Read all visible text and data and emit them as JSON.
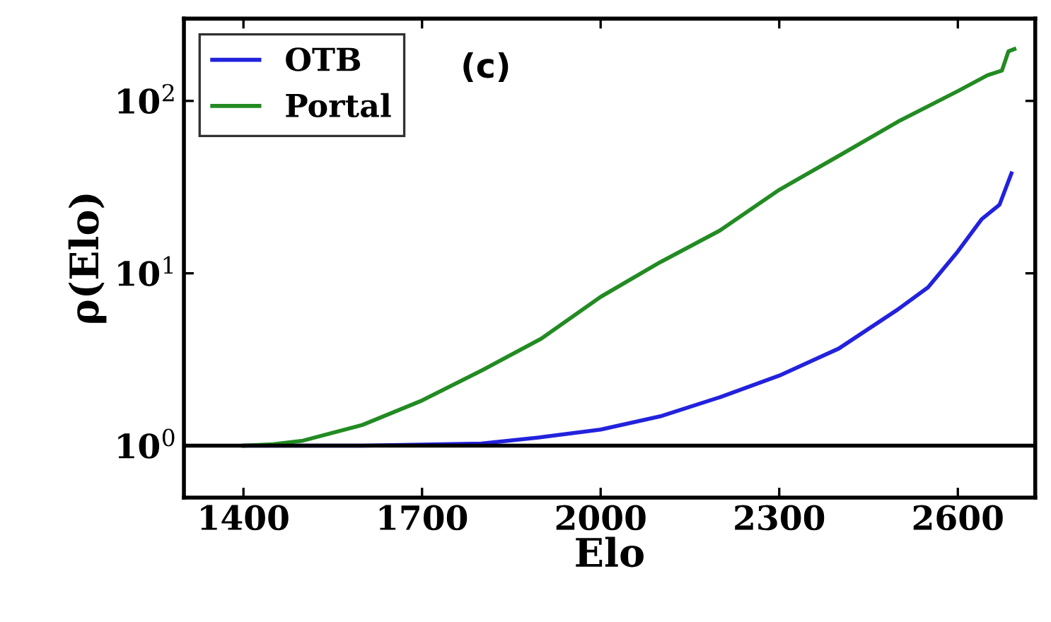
{
  "chart_data": {
    "type": "line",
    "xlabel": "Elo",
    "ylabel": "ρ(Elo)",
    "log": "y",
    "xlim": [
      1300,
      2730
    ],
    "xticks": [
      1400,
      1700,
      2000,
      2300,
      2600
    ],
    "ylim": [
      0.5,
      300
    ],
    "yticks": [
      {
        "value": 1,
        "label": "10$^{0}$"
      },
      {
        "value": 10,
        "label": "10$^{1}$"
      },
      {
        "value": 100,
        "label": "10$^{2}$"
      }
    ],
    "legend": "top left",
    "grid": false,
    "annotations": [
      "(c)"
    ],
    "ref_lines": [
      {
        "axis": "y",
        "value": 1,
        "color": "#000000"
      }
    ],
    "series": [
      {
        "name": "OTB",
        "color": "#2222dd",
        "x": [
          1400,
          1600,
          1800,
          1900,
          2000,
          2100,
          2200,
          2300,
          2400,
          2500,
          2550,
          2600,
          2640,
          2670,
          2690
        ],
        "values": [
          1.0,
          1.0,
          1.03,
          1.12,
          1.24,
          1.48,
          1.91,
          2.55,
          3.66,
          6.2,
          8.3,
          13.4,
          20.6,
          25,
          38
        ]
      },
      {
        "name": "Portal",
        "color": "#228b22",
        "x": [
          1400,
          1450,
          1500,
          1600,
          1700,
          1800,
          1900,
          2000,
          2100,
          2200,
          2300,
          2400,
          2500,
          2600,
          2650,
          2674,
          2685,
          2695
        ],
        "values": [
          1.0,
          1.02,
          1.07,
          1.32,
          1.83,
          2.73,
          4.17,
          7.3,
          11.6,
          17.7,
          30.5,
          48,
          76,
          114,
          141,
          150,
          194,
          200
        ]
      }
    ]
  }
}
